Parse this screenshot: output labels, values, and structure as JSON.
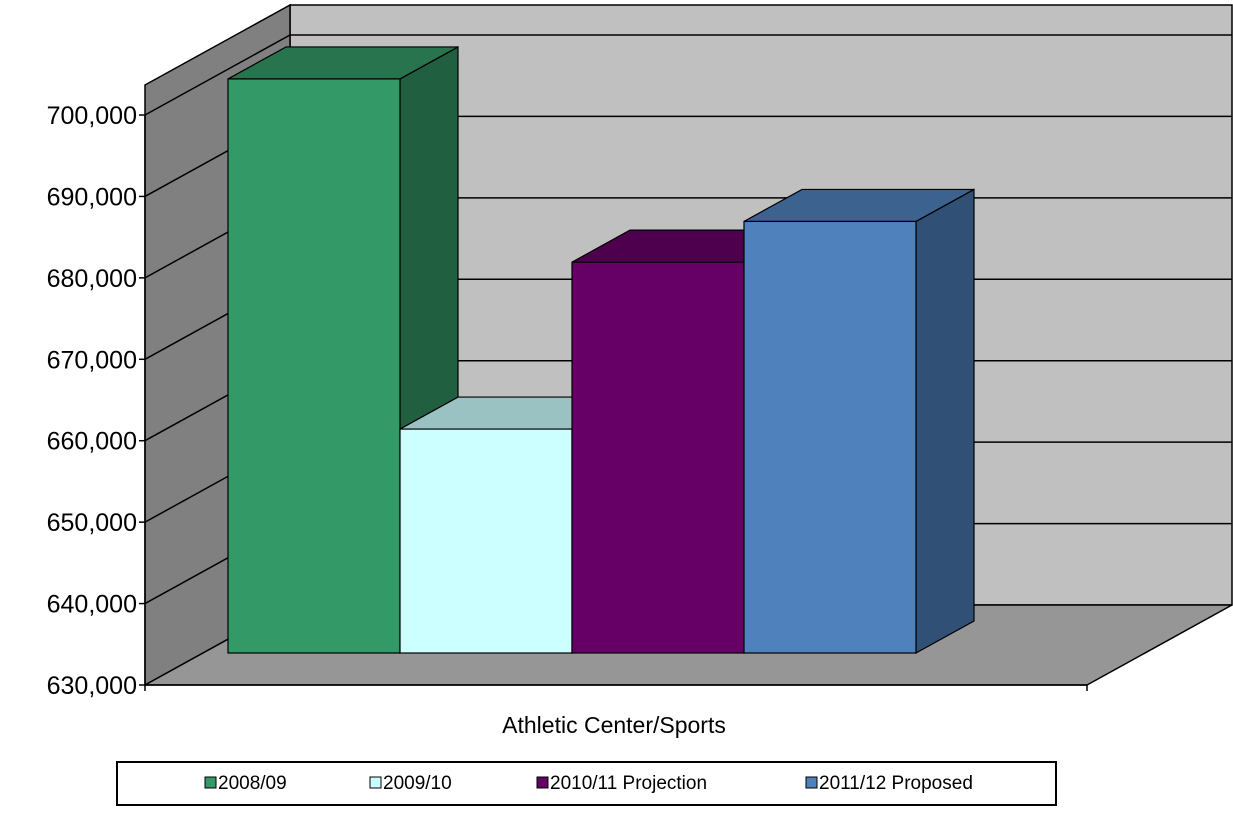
{
  "chart_data": {
    "type": "bar",
    "categories": [
      "Athletic Center/Sports"
    ],
    "series": [
      {
        "name": "2008/09",
        "values": [
          700500
        ],
        "color": "#339966"
      },
      {
        "name": "2009/10",
        "values": [
          657500
        ],
        "color": "#CCFFFF"
      },
      {
        "name": "2010/11 Projection",
        "values": [
          678000
        ],
        "color": "#660066"
      },
      {
        "name": "2011/12 Proposed",
        "values": [
          683000
        ],
        "color": "#4F81BD"
      }
    ],
    "ylim": [
      630000,
      700000
    ],
    "yticks": [
      {
        "value": 630000,
        "label": "630,000"
      },
      {
        "value": 640000,
        "label": "640,000"
      },
      {
        "value": 650000,
        "label": "650,000"
      },
      {
        "value": 660000,
        "label": "660,000"
      },
      {
        "value": 670000,
        "label": "670,000"
      },
      {
        "value": 680000,
        "label": "680,000"
      },
      {
        "value": 690000,
        "label": "690,000"
      },
      {
        "value": 700000,
        "label": "700,000"
      }
    ],
    "style": "3d-clustered-column",
    "grid": true,
    "legend": "bottom",
    "wall_color": "#C0C0C0",
    "side_wall_color": "#808080",
    "floor_color": "#969696"
  }
}
